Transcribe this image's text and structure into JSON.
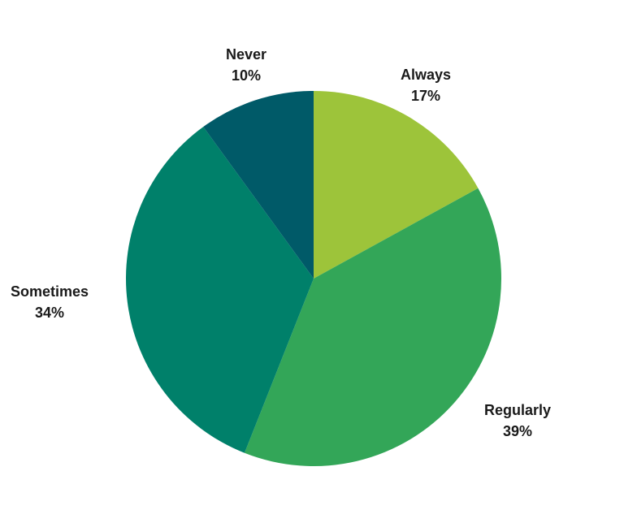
{
  "chart_data": {
    "type": "pie",
    "title": "",
    "slices": [
      {
        "label": "Always",
        "value": 17,
        "percent_label": "17%",
        "color": "#9dc43a"
      },
      {
        "label": "Regularly",
        "value": 39,
        "percent_label": "39%",
        "color": "#33a658"
      },
      {
        "label": "Sometimes",
        "value": 34,
        "percent_label": "34%",
        "color": "#00806a"
      },
      {
        "label": "Never",
        "value": 10,
        "percent_label": "10%",
        "color": "#005a68"
      }
    ],
    "start_angle": "12 o'clock",
    "direction": "clockwise",
    "legend": "none"
  }
}
